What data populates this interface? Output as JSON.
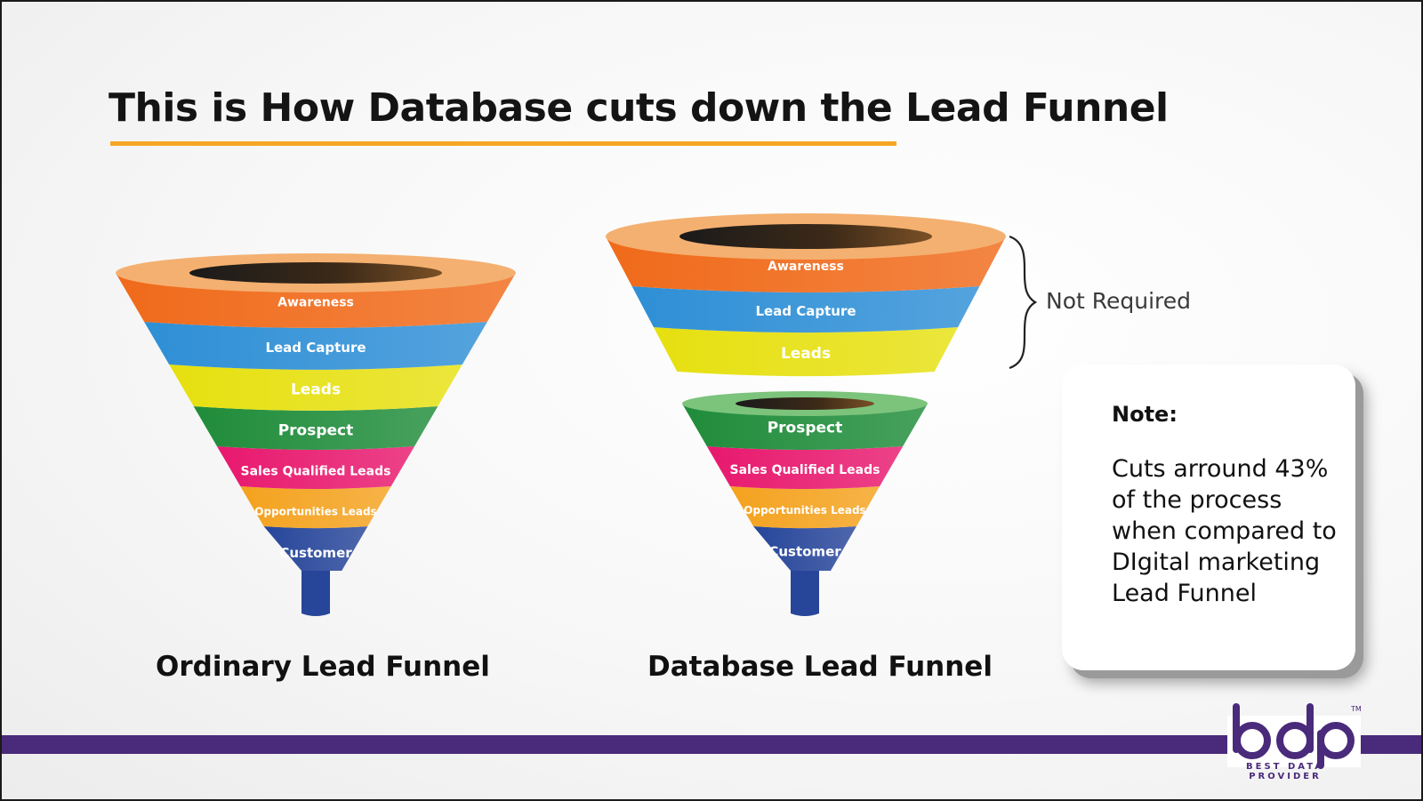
{
  "title": "This is How Database cuts down the Lead Funnel",
  "colors": {
    "accent_underline": "#f6a623",
    "brand_purple": "#4a2a7a"
  },
  "ordinary_funnel": {
    "caption": "Ordinary Lead Funnel",
    "stages": [
      {
        "label": "Awareness",
        "color": "#f06a1a"
      },
      {
        "label": "Lead Capture",
        "color": "#2e8fd6"
      },
      {
        "label": "Leads",
        "color": "#e6e010"
      },
      {
        "label": "Prospect",
        "color": "#1f8c3a"
      },
      {
        "label": "Sales Qualified Leads",
        "color": "#e8186e"
      },
      {
        "label": "Opportunities Leads",
        "color": "#f4a21e"
      },
      {
        "label": "Customer",
        "color": "#27469a"
      }
    ]
  },
  "database_funnel": {
    "caption": "Database Lead Funnel",
    "removed_stages": [
      {
        "label": "Awareness",
        "color": "#f06a1a"
      },
      {
        "label": "Lead Capture",
        "color": "#2e8fd6"
      },
      {
        "label": "Leads",
        "color": "#e6e010"
      }
    ],
    "stages": [
      {
        "label": "Prospect",
        "color": "#1f8c3a"
      },
      {
        "label": "Sales Qualified Leads",
        "color": "#e8186e"
      },
      {
        "label": "Opportunities Leads",
        "color": "#f4a21e"
      },
      {
        "label": "Customer",
        "color": "#27469a"
      }
    ],
    "annotation": "Not Required"
  },
  "note": {
    "heading": "Note:",
    "body": "Cuts arround 43% of the process when compared to DIgital marketing Lead Funnel"
  },
  "logo": {
    "letters": "bdp",
    "line1": "BEST DATA",
    "line2": "PROVIDER",
    "trademark": "TM"
  }
}
